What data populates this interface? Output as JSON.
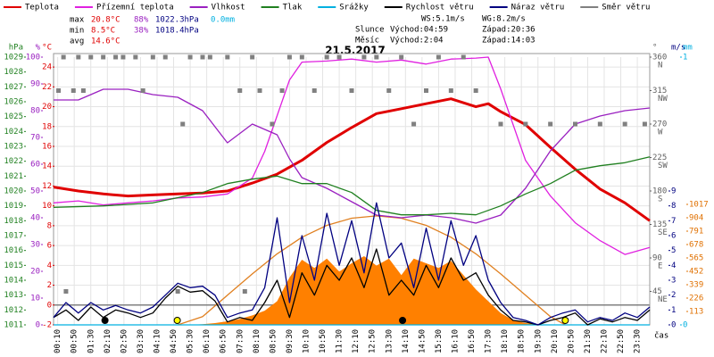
{
  "chart_data": {
    "type": "line",
    "title": "21.5.2017",
    "stats": {
      "rows": [
        [
          "max",
          "20.8°C",
          "88%",
          "1022.3hPa",
          "0.0mm"
        ],
        [
          "min",
          "8.5°C",
          "38%",
          "1018.4hPa"
        ],
        [
          "avg",
          "14.6°C"
        ]
      ],
      "colors": [
        "#000000",
        "#e00000",
        "#9a20c0",
        "#000080",
        "#00b0e0"
      ]
    },
    "info": [
      [
        "WS:5.1m/s",
        "WG:8.2m/s"
      ],
      [
        "Slunce",
        "Východ:04:59",
        "Západ:20:36"
      ],
      [
        "Měsíc",
        "Východ:2:04",
        "Západ:14:03"
      ]
    ],
    "xlabel": "čas",
    "xlim": [
      0,
      24
    ],
    "xticks": [
      {
        "value": 0.1667,
        "label": "00:10"
      },
      {
        "value": 0.8333,
        "label": "00:50"
      },
      {
        "value": 1.5,
        "label": "01:30"
      },
      {
        "value": 2.1667,
        "label": "02:10"
      },
      {
        "value": 2.8333,
        "label": "02:50"
      },
      {
        "value": 3.5,
        "label": "03:30"
      },
      {
        "value": 4.1667,
        "label": "04:10"
      },
      {
        "value": 4.8333,
        "label": "04:50"
      },
      {
        "value": 5.5,
        "label": "05:30"
      },
      {
        "value": 6.1667,
        "label": "06:10"
      },
      {
        "value": 6.8333,
        "label": "06:50"
      },
      {
        "value": 7.5,
        "label": "07:30"
      },
      {
        "value": 8.1667,
        "label": "08:10"
      },
      {
        "value": 8.8333,
        "label": "08:50"
      },
      {
        "value": 9.5,
        "label": "09:30"
      },
      {
        "value": 10.1667,
        "label": "10:10"
      },
      {
        "value": 10.8333,
        "label": "10:50"
      },
      {
        "value": 11.5,
        "label": "11:30"
      },
      {
        "value": 12.1667,
        "label": "12:10"
      },
      {
        "value": 12.8333,
        "label": "12:50"
      },
      {
        "value": 13.5,
        "label": "13:30"
      },
      {
        "value": 14.1667,
        "label": "14:10"
      },
      {
        "value": 14.8333,
        "label": "14:50"
      },
      {
        "value": 15.5,
        "label": "15:30"
      },
      {
        "value": 16.1667,
        "label": "16:10"
      },
      {
        "value": 16.8333,
        "label": "16:50"
      },
      {
        "value": 17.5,
        "label": "17:30"
      },
      {
        "value": 18.1667,
        "label": "18:10"
      },
      {
        "value": 18.8333,
        "label": "18:50"
      },
      {
        "value": 19.5,
        "label": "19:30"
      },
      {
        "value": 20.1667,
        "label": "20:10"
      },
      {
        "value": 20.8333,
        "label": "20:50"
      },
      {
        "value": 21.5,
        "label": "21:30"
      },
      {
        "value": 22.1667,
        "label": "22:10"
      },
      {
        "value": 22.8333,
        "label": "22:50"
      },
      {
        "value": 23.5,
        "label": "23:30"
      }
    ],
    "grid": true,
    "ylabel": "°C",
    "ylim": [
      -2,
      25
    ],
    "yticks": [
      -2,
      0,
      2,
      4,
      6,
      8,
      10,
      12,
      14,
      16,
      18,
      20,
      22,
      24
    ],
    "ycolor": "#e00000",
    "y2label": "%",
    "y2lim": [
      0,
      100
    ],
    "y2ticks": [
      0,
      10,
      20,
      30,
      40,
      50,
      60,
      70,
      80,
      90,
      100
    ],
    "y2color": "#9a20c0",
    "y3label": "hPa",
    "y3lim": [
      1011,
      1029
    ],
    "y3ticks": [
      1011,
      1012,
      1013,
      1014,
      1015,
      1016,
      1017,
      1018,
      1019,
      1020,
      1021,
      1022,
      1023,
      1024,
      1025,
      1026,
      1027,
      1028,
      1029
    ],
    "y3color": "#208020",
    "y4label": "°",
    "y4lim": [
      0,
      360
    ],
    "y4ticks": [
      45,
      90,
      135,
      180,
      225,
      270,
      315,
      360
    ],
    "y4tick_names": [
      "NE",
      "E",
      "SE",
      "S",
      "SW",
      "W",
      "NW",
      "N"
    ],
    "y4color": "#606060",
    "y5label": "m/s",
    "y5lim": [
      0,
      18
    ],
    "y5ticks": [
      0,
      1,
      2,
      3,
      4,
      5,
      6,
      7,
      8,
      9
    ],
    "y5color": "#000080",
    "y6label": "mm",
    "y6lim": [
      0,
      1
    ],
    "y6ticks": [
      0,
      1
    ],
    "y6color": "#00b0e0",
    "y7lim": [
      0,
      2260
    ],
    "y7ticks": [
      113,
      226,
      339,
      452,
      565,
      678,
      791,
      904,
      1017
    ],
    "y7color": "#e07000",
    "series": [
      {
        "type": "area",
        "color": "#ff8000",
        "axis": "y7",
        "x": [
          0,
          5.5,
          6,
          6.5,
          7,
          7.5,
          8,
          8.5,
          9,
          9.5,
          10,
          10.5,
          11,
          11.5,
          12,
          12.5,
          13,
          13.5,
          14,
          14.5,
          15,
          15.5,
          16,
          16.5,
          17,
          17.5,
          18,
          18.5,
          19,
          19.5,
          20,
          24
        ],
        "values": [
          0,
          0,
          5,
          15,
          30,
          50,
          80,
          120,
          200,
          400,
          550,
          480,
          560,
          450,
          520,
          580,
          500,
          560,
          420,
          560,
          520,
          480,
          540,
          420,
          300,
          200,
          100,
          40,
          15,
          5,
          0,
          0
        ]
      },
      {
        "type": "line",
        "color": "#e08020",
        "axis": "y7",
        "x": [
          5,
          6,
          7,
          8,
          9,
          10,
          11,
          12,
          13,
          14,
          15,
          16,
          17,
          18,
          19,
          20,
          20.6
        ],
        "values": [
          0,
          70,
          250,
          430,
          600,
          740,
          840,
          900,
          920,
          900,
          840,
          740,
          600,
          430,
          250,
          70,
          0
        ]
      },
      {
        "name": "Teplota",
        "type": "line",
        "color": "#e00000",
        "axis": "y",
        "x": [
          0,
          1,
          2,
          3,
          4,
          5,
          6,
          7,
          8,
          9,
          10,
          11,
          12,
          13,
          14,
          15,
          16,
          17,
          17.5,
          18,
          19,
          20,
          21,
          22,
          23,
          24
        ],
        "values": [
          11.9,
          11.5,
          11.2,
          11.0,
          11.1,
          11.2,
          11.3,
          11.5,
          12.3,
          13.2,
          14.6,
          16.4,
          17.9,
          19.3,
          19.8,
          20.3,
          20.8,
          20.0,
          20.3,
          19.5,
          18.2,
          15.9,
          13.7,
          11.7,
          10.3,
          8.5
        ]
      },
      {
        "name": "Přízemní teplota",
        "type": "line",
        "color": "#e020e0",
        "axis": "y",
        "x": [
          0,
          1,
          2,
          3,
          4,
          5,
          6,
          7,
          8,
          8.5,
          9,
          9.5,
          10,
          11,
          12,
          13,
          14,
          15,
          16,
          17,
          17.5,
          18,
          19,
          20,
          21,
          22,
          23,
          24
        ],
        "values": [
          10.3,
          10.5,
          10.1,
          10.3,
          10.5,
          10.8,
          10.9,
          11.2,
          12.8,
          15.5,
          19.1,
          22.7,
          24.5,
          24.6,
          24.8,
          24.5,
          24.7,
          24.3,
          24.8,
          24.9,
          25.0,
          21.8,
          14.6,
          11.0,
          8.3,
          6.5,
          5.1,
          5.8
        ]
      },
      {
        "name": "Vlhkost",
        "type": "line",
        "color": "#9a20c0",
        "axis": "y2",
        "x": [
          0,
          1,
          2,
          3,
          4,
          5,
          6,
          7,
          8,
          9,
          9.5,
          10,
          11,
          12,
          13,
          14,
          15,
          16,
          17,
          18,
          19,
          20,
          21,
          22,
          23,
          24
        ],
        "values": [
          84,
          84,
          88,
          88,
          86,
          85,
          80,
          68,
          75,
          71,
          62,
          55,
          51,
          46,
          41,
          40,
          41,
          40,
          38,
          41,
          51,
          65,
          75,
          78,
          80,
          81
        ]
      },
      {
        "name": "Tlak",
        "type": "line",
        "color": "#208020",
        "axis": "y3",
        "x": [
          0,
          2,
          4,
          6,
          7,
          8,
          9,
          10,
          11,
          12,
          13,
          14,
          15,
          16,
          17,
          18,
          19,
          20,
          21,
          22,
          23,
          24
        ],
        "values": [
          1018.9,
          1019.0,
          1019.2,
          1019.9,
          1020.5,
          1020.8,
          1021.0,
          1020.5,
          1020.5,
          1019.9,
          1018.7,
          1018.4,
          1018.4,
          1018.5,
          1018.4,
          1019.0,
          1019.8,
          1020.5,
          1021.4,
          1021.7,
          1021.9,
          1022.3
        ]
      },
      {
        "name": "Srážky",
        "type": "line",
        "color": "#00b0e0",
        "axis": "y6",
        "x": [
          0,
          24
        ],
        "values": [
          0,
          0
        ]
      },
      {
        "name": "Rychlost větru",
        "type": "line",
        "color": "#000000",
        "axis": "y5",
        "x": [
          0,
          0.5,
          1,
          1.5,
          2,
          2.5,
          3,
          3.5,
          4,
          4.5,
          5,
          5.5,
          6,
          6.5,
          7,
          7.5,
          8,
          8.5,
          9,
          9.5,
          10,
          10.5,
          11,
          11.5,
          12,
          12.5,
          13,
          13.5,
          14,
          14.5,
          15,
          15.5,
          16,
          16.5,
          17,
          17.5,
          18,
          18.5,
          19,
          19.5,
          20,
          20.5,
          21,
          21.5,
          22,
          22.5,
          23,
          23.5,
          24
        ],
        "values": [
          0.5,
          1.0,
          0.3,
          1.2,
          0.5,
          1.0,
          0.8,
          0.5,
          0.8,
          1.8,
          2.6,
          2.2,
          2.3,
          1.6,
          0.2,
          0.5,
          0.3,
          1.5,
          3.0,
          0.5,
          3.5,
          2.0,
          4.0,
          3.0,
          4.5,
          2.5,
          5.1,
          2.0,
          3.0,
          2.0,
          4.0,
          2.5,
          4.5,
          3.0,
          3.5,
          2.0,
          1.0,
          0.3,
          0.2,
          0.0,
          0.3,
          0.5,
          0.8,
          0.0,
          0.4,
          0.2,
          0.5,
          0.3,
          1.0
        ]
      },
      {
        "name": "Náraz větru",
        "type": "line",
        "color": "#000080",
        "axis": "y5",
        "x": [
          0,
          0.5,
          1,
          1.5,
          2,
          2.5,
          3,
          3.5,
          4,
          4.5,
          5,
          5.5,
          6,
          6.5,
          7,
          7.5,
          8,
          8.5,
          9,
          9.5,
          10,
          10.5,
          11,
          11.5,
          12,
          12.5,
          13,
          13.5,
          14,
          14.5,
          15,
          15.5,
          16,
          16.5,
          17,
          17.5,
          18,
          18.5,
          19,
          19.5,
          20,
          20.5,
          21,
          21.5,
          22,
          22.5,
          23,
          23.5,
          24
        ],
        "values": [
          0.5,
          1.5,
          0.8,
          1.5,
          1.0,
          1.3,
          1.0,
          0.8,
          1.2,
          2.0,
          2.8,
          2.5,
          2.6,
          2.0,
          0.5,
          0.8,
          1.0,
          2.5,
          7.2,
          1.5,
          6.0,
          3.0,
          7.5,
          4.0,
          7.0,
          3.5,
          8.2,
          4.5,
          5.5,
          2.5,
          6.5,
          3.0,
          7.0,
          4.0,
          6.0,
          3.0,
          1.5,
          0.5,
          0.3,
          0.0,
          0.5,
          0.8,
          1.0,
          0.2,
          0.5,
          0.3,
          0.8,
          0.5,
          1.2
        ]
      },
      {
        "name": "Směr větru",
        "type": "scatter",
        "color": "#808080",
        "axis": "y4",
        "x": [
          0.2,
          0.4,
          0.5,
          0.8,
          1,
          1.2,
          1.5,
          2,
          2.5,
          2.8,
          3.3,
          3.6,
          4,
          4.5,
          5,
          5.2,
          5.5,
          6,
          6.3,
          7,
          7.5,
          7.7,
          8,
          8.3,
          8.8,
          9.2,
          9.5,
          10,
          10.5,
          11,
          11.5,
          12,
          12.5,
          13,
          13.5,
          14,
          14.5,
          15,
          15.5,
          16,
          16.5,
          17,
          18,
          19,
          20,
          21,
          22,
          23,
          23.8
        ],
        "values": [
          315,
          360,
          45,
          315,
          360,
          315,
          360,
          360,
          360,
          360,
          360,
          315,
          360,
          360,
          45,
          270,
          360,
          360,
          360,
          360,
          315,
          45,
          360,
          315,
          270,
          315,
          360,
          360,
          315,
          360,
          360,
          315,
          360,
          360,
          315,
          360,
          270,
          315,
          360,
          315,
          360,
          315,
          270,
          270,
          270,
          270,
          270,
          270,
          270
        ]
      }
    ],
    "sun_events": {
      "color": "#ffff00",
      "x": [
        4.98,
        20.6
      ]
    },
    "moon_events": {
      "color": "#000000",
      "x": [
        2.07,
        14.05
      ]
    }
  }
}
